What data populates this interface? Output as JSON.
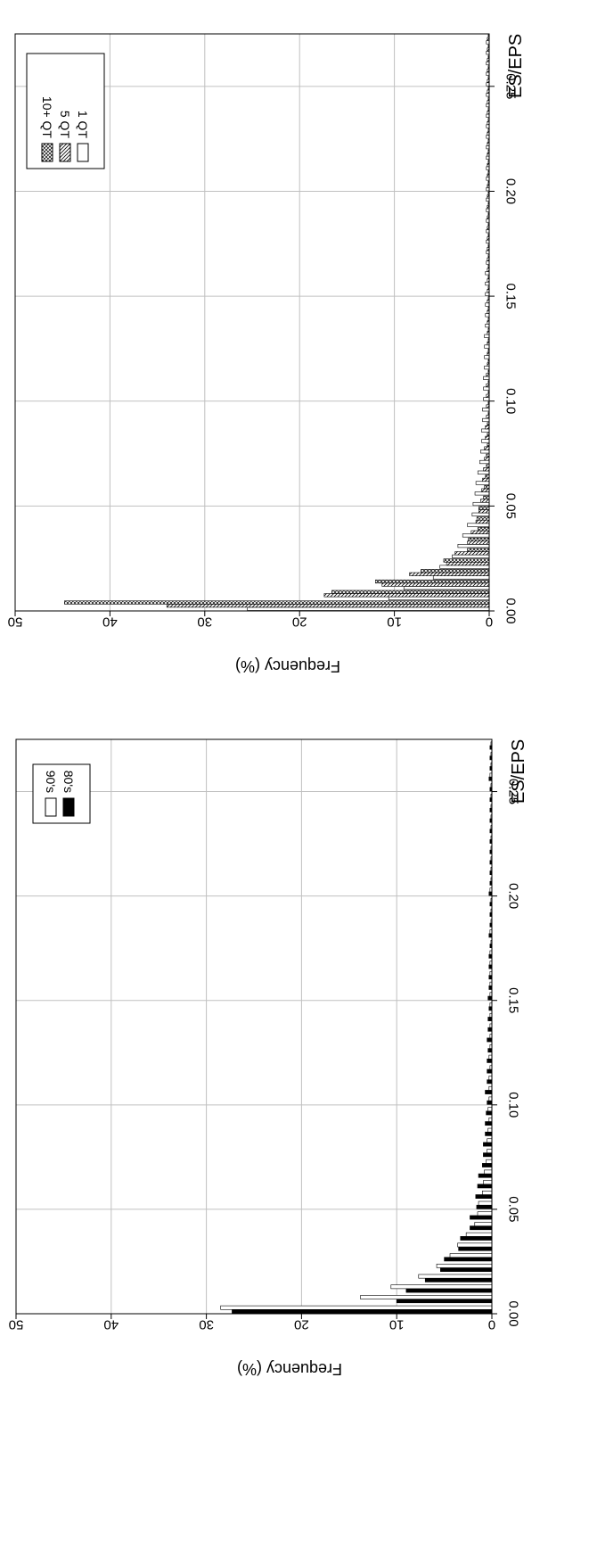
{
  "chart_data": [
    {
      "type": "bar",
      "xlabel": "ES/EPS",
      "ylabel": "Frequency (%)",
      "xlim": [
        0.0,
        0.275
      ],
      "ylim": [
        0,
        50
      ],
      "x_ticks": [
        "0.00",
        "0.05",
        "0.10",
        "0.15",
        "0.20",
        "0.25"
      ],
      "y_ticks": [
        "0",
        "10",
        "20",
        "30",
        "40",
        "50"
      ],
      "grid": true,
      "legend_position": "top-right",
      "bin_width": 0.005,
      "bin_start": 0.0,
      "series": [
        {
          "name": "80's",
          "fill": "#000000",
          "values": [
            27.3,
            10.0,
            9.0,
            7.0,
            5.4,
            5.0,
            3.5,
            3.3,
            2.3,
            2.3,
            1.6,
            1.7,
            1.5,
            1.4,
            1.0,
            0.9,
            0.9,
            0.7,
            0.7,
            0.6,
            0.5,
            0.7,
            0.5,
            0.5,
            0.5,
            0.4,
            0.5,
            0.4,
            0.4,
            0.3,
            0.4,
            0.3,
            0.3,
            0.3,
            0.3,
            0.2,
            0.3,
            0.2,
            0.2,
            0.2,
            0.3,
            0.2,
            0.2,
            0.2,
            0.2,
            0.2,
            0.2,
            0.2,
            0.2,
            0.2,
            0.2,
            0.3,
            0.2,
            0.2,
            0.2
          ]
        },
        {
          "name": "90's",
          "fill": "#ffffff",
          "values": [
            28.5,
            13.8,
            10.6,
            7.7,
            5.8,
            4.4,
            3.6,
            2.7,
            1.8,
            1.5,
            1.4,
            1.0,
            0.9,
            0.8,
            0.6,
            0.5,
            0.5,
            0.4,
            0.3,
            0.4,
            0.3,
            0.3,
            0.3,
            0.2,
            0.3,
            0.2,
            0.2,
            0.2,
            0.2,
            0.2,
            0.2,
            0.2,
            0.2,
            0.2,
            0.2,
            0.1,
            0.2,
            0.1,
            0.1,
            0.1,
            0.2,
            0.1,
            0.1,
            0.1,
            0.1,
            0.1,
            0.1,
            0.1,
            0.1,
            0.1,
            0.1,
            0.2,
            0.1,
            0.1,
            0.1
          ]
        }
      ]
    },
    {
      "type": "bar",
      "xlabel": "ES/EPS",
      "ylabel": "Frequency (%)",
      "xlim": [
        0.0,
        0.275
      ],
      "ylim": [
        0,
        50
      ],
      "x_ticks": [
        "0.00",
        "0.05",
        "0.10",
        "0.15",
        "0.20",
        "0.25"
      ],
      "y_ticks": [
        "0",
        "10",
        "20",
        "30",
        "40",
        "50"
      ],
      "grid": true,
      "legend_position": "top-right",
      "bin_width": 0.005,
      "bin_start": 0.0,
      "series": [
        {
          "name": "1 QT",
          "fill": "#ffffff",
          "values": [
            25.5,
            10.6,
            9.0,
            5.9,
            5.2,
            3.9,
            3.3,
            2.8,
            2.3,
            1.8,
            1.7,
            1.5,
            1.4,
            1.2,
            1.0,
            0.9,
            0.8,
            0.8,
            0.7,
            0.7,
            0.6,
            0.6,
            0.6,
            0.5,
            0.5,
            0.5,
            0.5,
            0.4,
            0.4,
            0.4,
            0.4,
            0.4,
            0.4,
            0.3,
            0.3,
            0.3,
            0.3,
            0.3,
            0.3,
            0.3,
            0.3,
            0.3,
            0.3,
            0.3,
            0.3,
            0.3,
            0.3,
            0.3,
            0.3,
            0.3,
            0.3,
            0.3,
            0.3,
            0.3,
            0.3
          ]
        },
        {
          "name": "5 QT",
          "fill": "diagonal",
          "values": [
            34.0,
            17.4,
            11.3,
            8.4,
            4.5,
            3.6,
            2.3,
            1.9,
            1.4,
            1.1,
            0.9,
            0.8,
            0.7,
            0.6,
            0.5,
            0.5,
            0.4,
            0.4,
            0.3,
            0.3,
            0.3,
            0.3,
            0.3,
            0.2,
            0.2,
            0.2,
            0.2,
            0.2,
            0.2,
            0.2,
            0.2,
            0.2,
            0.2,
            0.2,
            0.2,
            0.2,
            0.2,
            0.2,
            0.2,
            0.2,
            0.2,
            0.2,
            0.2,
            0.2,
            0.2,
            0.2,
            0.2,
            0.2,
            0.2,
            0.2,
            0.2,
            0.2,
            0.2,
            0.2,
            0.2
          ]
        },
        {
          "name": "10+ QT",
          "fill": "crosshatch",
          "values": [
            44.8,
            16.6,
            12.0,
            7.2,
            4.8,
            2.3,
            2.2,
            1.2,
            1.3,
            1.1,
            0.6,
            0.5,
            0.4,
            0.3,
            0.3,
            0.2,
            0.2,
            0.2,
            0.1,
            0.1,
            0.1,
            0.1,
            0.1,
            0.1,
            0.1,
            0.1,
            0.1,
            0.1,
            0.1,
            0.1,
            0.1,
            0.1,
            0.1,
            0.1,
            0.1,
            0.1,
            0.1,
            0.1,
            0.1,
            0.1,
            0.1,
            0.1,
            0.1,
            0.1,
            0.1,
            0.1,
            0.1,
            0.1,
            0.1,
            0.1,
            0.1,
            0.1,
            0.1,
            0.1,
            0.1
          ]
        }
      ]
    }
  ]
}
